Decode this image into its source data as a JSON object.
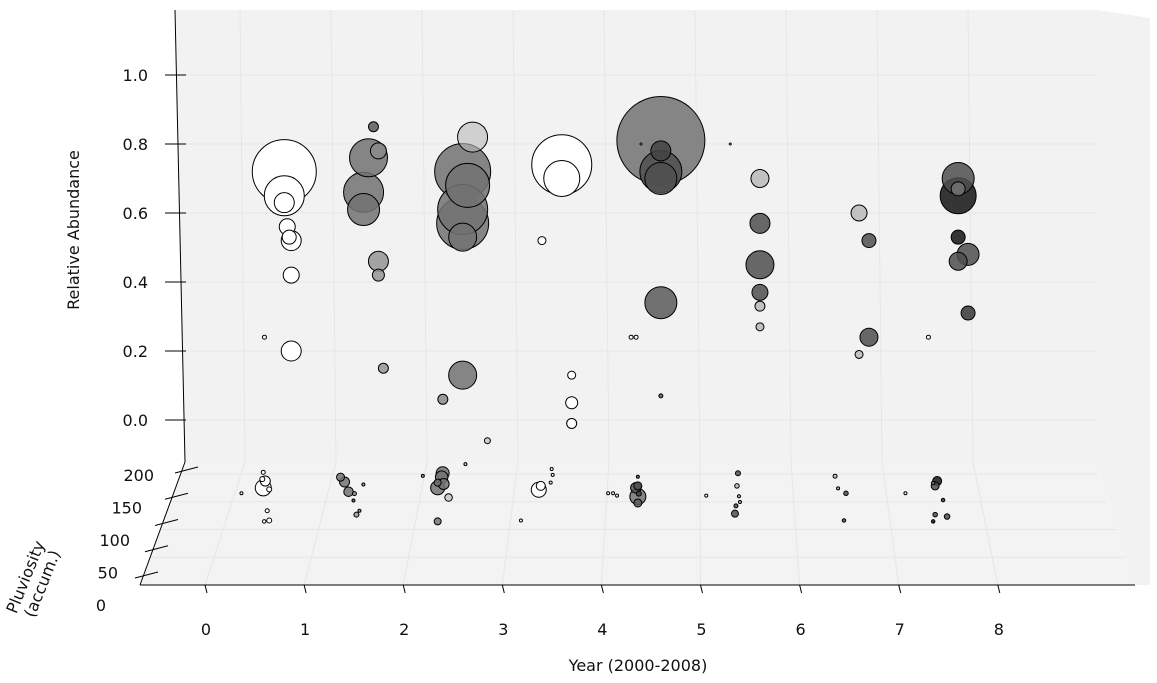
{
  "chart_data": {
    "type": "scatter",
    "variant": "3d-bubble",
    "title": "",
    "xlabel": "Year (2000-2008)",
    "ylabel": "Relative Abundance",
    "zlabel": "Pluviosity\n(accum.)",
    "x_ticks": [
      "0",
      "1",
      "2",
      "3",
      "4",
      "5",
      "6",
      "7",
      "8"
    ],
    "y_ticks": [
      "0.0",
      "0.2",
      "0.4",
      "0.6",
      "0.8",
      "1.0"
    ],
    "z_ticks": [
      "0",
      "50",
      "100",
      "150",
      "200"
    ],
    "xlim": [
      0,
      8
    ],
    "ylim": [
      0,
      1
    ],
    "zlim": [
      0,
      200
    ],
    "grid": true,
    "legend": "none",
    "colors": {
      "pane": "#f2f2f2",
      "grid": "#e6e6e6",
      "edge": "#000000"
    },
    "points": [
      {
        "x": 0.8,
        "y": 0.72,
        "size": 32,
        "gray": 1.0
      },
      {
        "x": 0.8,
        "y": 0.65,
        "size": 20,
        "gray": 1.0
      },
      {
        "x": 0.8,
        "y": 0.63,
        "size": 10,
        "gray": 1.0
      },
      {
        "x": 0.83,
        "y": 0.56,
        "size": 8,
        "gray": 1.0
      },
      {
        "x": 0.85,
        "y": 0.53,
        "size": 7,
        "gray": 1.0
      },
      {
        "x": 0.87,
        "y": 0.52,
        "size": 10,
        "gray": 1.0
      },
      {
        "x": 0.87,
        "y": 0.42,
        "size": 8,
        "gray": 1.0
      },
      {
        "x": 0.87,
        "y": 0.2,
        "size": 10,
        "gray": 1.0
      },
      {
        "x": 0.6,
        "y": 0.24,
        "size": 2,
        "gray": 1.0
      },
      {
        "x": 1.7,
        "y": 0.85,
        "size": 5,
        "gray": 0.3
      },
      {
        "x": 1.65,
        "y": 0.76,
        "size": 19,
        "gray": 0.4
      },
      {
        "x": 1.75,
        "y": 0.78,
        "size": 8,
        "gray": 0.5
      },
      {
        "x": 1.6,
        "y": 0.66,
        "size": 20,
        "gray": 0.4
      },
      {
        "x": 1.6,
        "y": 0.61,
        "size": 16,
        "gray": 0.4
      },
      {
        "x": 1.75,
        "y": 0.46,
        "size": 10,
        "gray": 0.55
      },
      {
        "x": 1.75,
        "y": 0.42,
        "size": 6,
        "gray": 0.55
      },
      {
        "x": 1.8,
        "y": 0.15,
        "size": 5,
        "gray": 0.55
      },
      {
        "x": 2.7,
        "y": 0.82,
        "size": 15,
        "gray": 0.7
      },
      {
        "x": 2.6,
        "y": 0.72,
        "size": 28,
        "gray": 0.4
      },
      {
        "x": 2.65,
        "y": 0.68,
        "size": 22,
        "gray": 0.4
      },
      {
        "x": 2.6,
        "y": 0.61,
        "size": 25,
        "gray": 0.4
      },
      {
        "x": 2.6,
        "y": 0.57,
        "size": 26,
        "gray": 0.4
      },
      {
        "x": 2.6,
        "y": 0.53,
        "size": 14,
        "gray": 0.4
      },
      {
        "x": 2.6,
        "y": 0.13,
        "size": 14,
        "gray": 0.4
      },
      {
        "x": 2.4,
        "y": 0.06,
        "size": 5,
        "gray": 0.5
      },
      {
        "x": 2.85,
        "y": -0.06,
        "size": 3,
        "gray": 0.7
      },
      {
        "x": 3.6,
        "y": 0.74,
        "size": 30,
        "gray": 1.0
      },
      {
        "x": 3.6,
        "y": 0.7,
        "size": 18,
        "gray": 1.0
      },
      {
        "x": 3.4,
        "y": 0.52,
        "size": 4,
        "gray": 1.0
      },
      {
        "x": 3.7,
        "y": 0.13,
        "size": 4,
        "gray": 1.0
      },
      {
        "x": 3.7,
        "y": 0.05,
        "size": 6,
        "gray": 1.0
      },
      {
        "x": 3.7,
        "y": -0.01,
        "size": 5,
        "gray": 1.0
      },
      {
        "x": 4.6,
        "y": 0.81,
        "size": 44,
        "gray": 0.4
      },
      {
        "x": 4.6,
        "y": 0.78,
        "size": 10,
        "gray": 0.2
      },
      {
        "x": 4.6,
        "y": 0.72,
        "size": 21,
        "gray": 0.25
      },
      {
        "x": 4.6,
        "y": 0.7,
        "size": 16,
        "gray": 0.25
      },
      {
        "x": 4.6,
        "y": 0.34,
        "size": 16,
        "gray": 0.3
      },
      {
        "x": 4.6,
        "y": 0.07,
        "size": 2,
        "gray": 0.3
      },
      {
        "x": 4.3,
        "y": 0.24,
        "size": 2,
        "gray": 1.0
      },
      {
        "x": 4.35,
        "y": 0.24,
        "size": 2,
        "gray": 1.0
      },
      {
        "x": 4.4,
        "y": 0.8,
        "size": 1,
        "gray": 1.0
      },
      {
        "x": 5.3,
        "y": 0.8,
        "size": 1,
        "gray": 1.0
      },
      {
        "x": 5.6,
        "y": 0.7,
        "size": 9,
        "gray": 0.6
      },
      {
        "x": 5.6,
        "y": 0.57,
        "size": 10,
        "gray": 0.25
      },
      {
        "x": 5.6,
        "y": 0.45,
        "size": 14,
        "gray": 0.25
      },
      {
        "x": 5.6,
        "y": 0.37,
        "size": 8,
        "gray": 0.25
      },
      {
        "x": 5.6,
        "y": 0.33,
        "size": 5,
        "gray": 0.6
      },
      {
        "x": 5.6,
        "y": 0.27,
        "size": 4,
        "gray": 0.6
      },
      {
        "x": 6.6,
        "y": 0.6,
        "size": 8,
        "gray": 0.6
      },
      {
        "x": 6.7,
        "y": 0.52,
        "size": 7,
        "gray": 0.25
      },
      {
        "x": 6.7,
        "y": 0.24,
        "size": 9,
        "gray": 0.25
      },
      {
        "x": 6.6,
        "y": 0.19,
        "size": 4,
        "gray": 0.6
      },
      {
        "x": 7.6,
        "y": 0.7,
        "size": 16,
        "gray": 0.25
      },
      {
        "x": 7.6,
        "y": 0.67,
        "size": 7,
        "gray": 0.4
      },
      {
        "x": 7.6,
        "y": 0.65,
        "size": 18,
        "gray": 0.0
      },
      {
        "x": 7.6,
        "y": 0.53,
        "size": 7,
        "gray": 0.0
      },
      {
        "x": 7.7,
        "y": 0.48,
        "size": 11,
        "gray": 0.25
      },
      {
        "x": 7.6,
        "y": 0.46,
        "size": 9,
        "gray": 0.25
      },
      {
        "x": 7.7,
        "y": 0.31,
        "size": 7,
        "gray": 0.15
      },
      {
        "x": 7.3,
        "y": 0.24,
        "size": 2,
        "gray": 1.0
      }
    ]
  }
}
